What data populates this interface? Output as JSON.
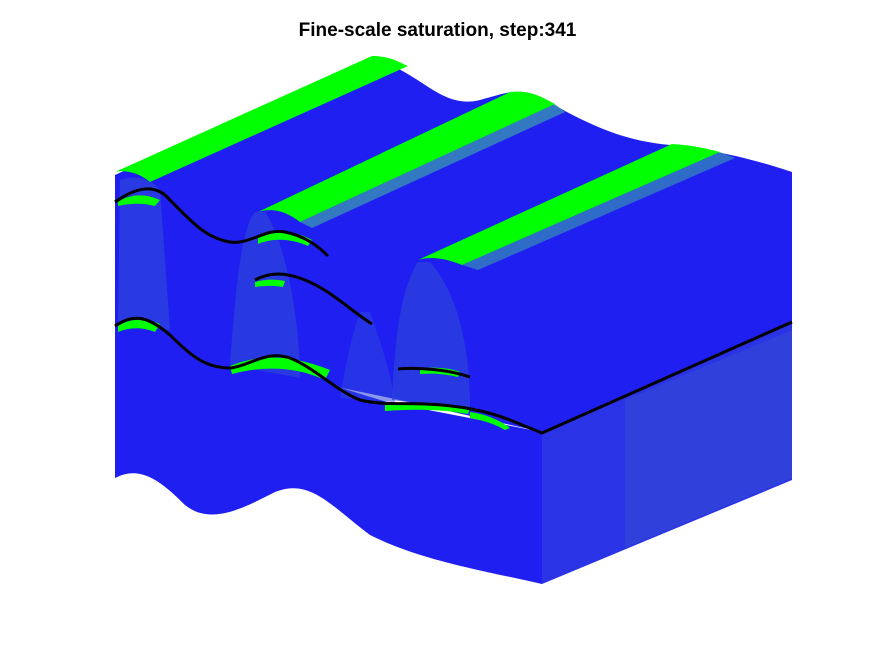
{
  "title": "Fine-scale saturation, step:341",
  "colors": {
    "background": "#ffffff",
    "water_saturated": "#1f1ff2",
    "oil_front": "#00ff00",
    "face_shade": "#2e44dc",
    "horizon_line": "#000000"
  }
}
